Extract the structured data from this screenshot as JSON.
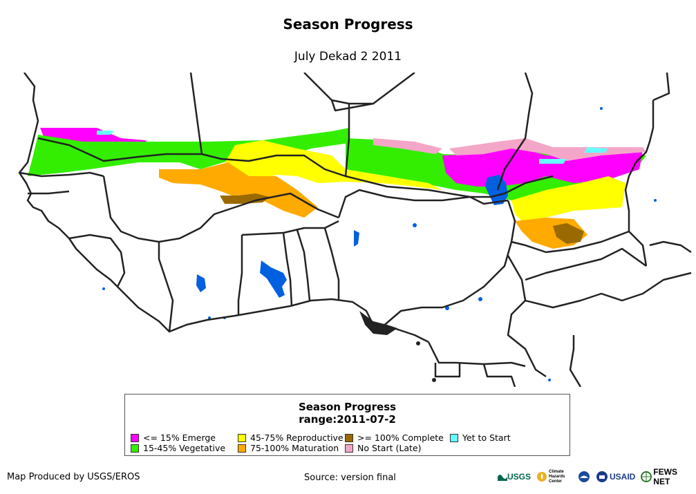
{
  "title": "Season Progress",
  "subtitle": "July Dekad 2 2011",
  "legend": {
    "title": "Season Progress",
    "range": "range:2011-07-2",
    "items": [
      {
        "label": "<= 15% Emerge",
        "color": "#ff00ff"
      },
      {
        "label": "15-45% Vegetative",
        "color": "#33ee00"
      },
      {
        "label": "45-75% Reproductive",
        "color": "#ffff00"
      },
      {
        "label": "75-100% Maturation",
        "color": "#ffaa00"
      },
      {
        "label": ">= 100% Complete",
        "color": "#9a6a00"
      },
      {
        "label": "No Start (Late)",
        "color": "#f4a6c8"
      },
      {
        "label": "Yet to Start",
        "color": "#66ffff"
      }
    ]
  },
  "footer": {
    "credit": "Map Produced by USGS/EROS",
    "source": "Source: version final"
  },
  "logos": {
    "usgs": "USGS",
    "chc": "Climate Hazards Center",
    "usaid": "USAID",
    "fewsnet": "FEWS NET"
  },
  "colors": {
    "water": "#0060e0",
    "border": "#222222"
  }
}
